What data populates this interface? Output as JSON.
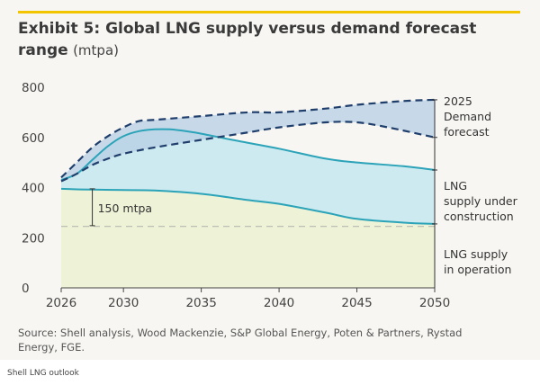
{
  "header": {
    "title": "Exhibit 5: Global LNG supply versus demand forecast",
    "title_line2": "range",
    "unit": "(mtpa)"
  },
  "footer": {
    "source": "Source: Shell analysis, Wood Mackenzie, S&P Global Energy, Poten & Partners, Rystad Energy, FGE.",
    "credit": "Shell LNG outlook"
  },
  "colors": {
    "accent_bar": "#f2c500",
    "operation_fill": "#eef2d6",
    "construction_fill": "#cdeaf0",
    "demand_fill": "#b7cfe4",
    "supply_line": "#2ba3b8",
    "demand_line": "#1f3e6b",
    "axis_text": "#444444"
  },
  "chart_data": {
    "type": "area",
    "ylim": [
      0,
      800
    ],
    "xlim": [
      2026,
      2050
    ],
    "yticks": [
      0,
      200,
      400,
      600,
      800
    ],
    "xticks": [
      2026,
      2030,
      2035,
      2040,
      2045,
      2050
    ],
    "ytick_labels": [
      "0",
      "200",
      "400",
      "600",
      "800"
    ],
    "xtick_labels": [
      "2026",
      "2030",
      "2035",
      "2040",
      "2045",
      "2050"
    ],
    "grid": false,
    "series": [
      {
        "name": "LNG supply in operation",
        "role": "lower-area",
        "x": [
          2026,
          2027,
          2028,
          2030,
          2032,
          2035,
          2038,
          2040,
          2043,
          2045,
          2048,
          2050
        ],
        "y": [
          395,
          393,
          392,
          390,
          388,
          375,
          350,
          335,
          300,
          275,
          260,
          255
        ]
      },
      {
        "name": "LNG supply under construction",
        "role": "upper-area",
        "x": [
          2026,
          2027,
          2028,
          2029,
          2030,
          2031,
          2032,
          2033,
          2034,
          2035,
          2037,
          2040,
          2043,
          2045,
          2048,
          2050
        ],
        "y": [
          430,
          455,
          510,
          565,
          605,
          625,
          632,
          632,
          625,
          615,
          590,
          555,
          515,
          500,
          485,
          470
        ]
      },
      {
        "name": "2025 Demand forecast (high)",
        "role": "demand-upper",
        "x": [
          2026,
          2027,
          2028,
          2029,
          2030,
          2031,
          2032,
          2035,
          2038,
          2040,
          2043,
          2045,
          2048,
          2050
        ],
        "y": [
          440,
          500,
          560,
          605,
          640,
          665,
          670,
          685,
          700,
          700,
          715,
          730,
          745,
          750
        ]
      },
      {
        "name": "2025 Demand forecast (low)",
        "role": "demand-lower",
        "x": [
          2026,
          2027,
          2028,
          2029,
          2030,
          2032,
          2035,
          2038,
          2040,
          2043,
          2045,
          2047,
          2050
        ],
        "y": [
          425,
          455,
          490,
          515,
          535,
          560,
          590,
          620,
          640,
          660,
          660,
          640,
          600
        ]
      },
      {
        "name": "2026 operation reference",
        "role": "reference-dashed",
        "x": [
          2026,
          2050
        ],
        "y": [
          245,
          245
        ]
      }
    ],
    "annotations": [
      {
        "key": "gap",
        "text": "150 mtpa"
      },
      {
        "key": "demand",
        "text": [
          "2025",
          "Demand",
          "forecast"
        ]
      },
      {
        "key": "construction",
        "text": [
          "LNG",
          "supply under",
          "construction"
        ]
      },
      {
        "key": "operation",
        "text": [
          "LNG supply",
          "in operation"
        ]
      }
    ]
  }
}
